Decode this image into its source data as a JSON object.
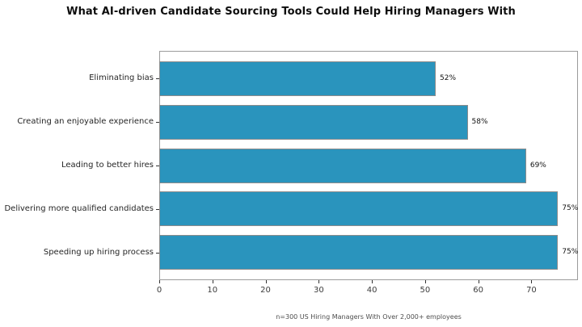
{
  "title": "What AI-driven Candidate Sourcing Tools Could Help Hiring Managers With",
  "footnote": "n=300 US Hiring Managers With Over 2,000+ employees",
  "colors": {
    "bar_fill": "#2a94bd",
    "bar_edge": "#8c8c8c",
    "spine": "#9b9b9b",
    "tick": "#333333",
    "title_text": "#0d0d0d",
    "axis_label_text": "#262626",
    "xtick_text": "#3c3c3c",
    "footnote_text": "#4d4d4d",
    "background": "#ffffff"
  },
  "chart_data": {
    "type": "bar",
    "orientation": "horizontal",
    "title": "What AI-driven Candidate Sourcing Tools Could Help Hiring Managers With",
    "categories": [
      "Eliminating bias",
      "Creating an enjoyable experience",
      "Leading to better hires",
      "Delivering more qualified candidates",
      "Speeding up hiring process"
    ],
    "values": [
      52,
      58,
      69,
      75,
      75
    ],
    "value_labels": [
      "52%",
      "58%",
      "69%",
      "75%",
      "75%"
    ],
    "xlabel": "",
    "ylabel": "",
    "xticks": [
      0,
      10,
      20,
      30,
      40,
      50,
      60,
      70
    ],
    "xlim": [
      0,
      78.75
    ],
    "grid": false,
    "legend": "none",
    "annotation": "n=300 US Hiring Managers With Over 2,000+ employees"
  }
}
